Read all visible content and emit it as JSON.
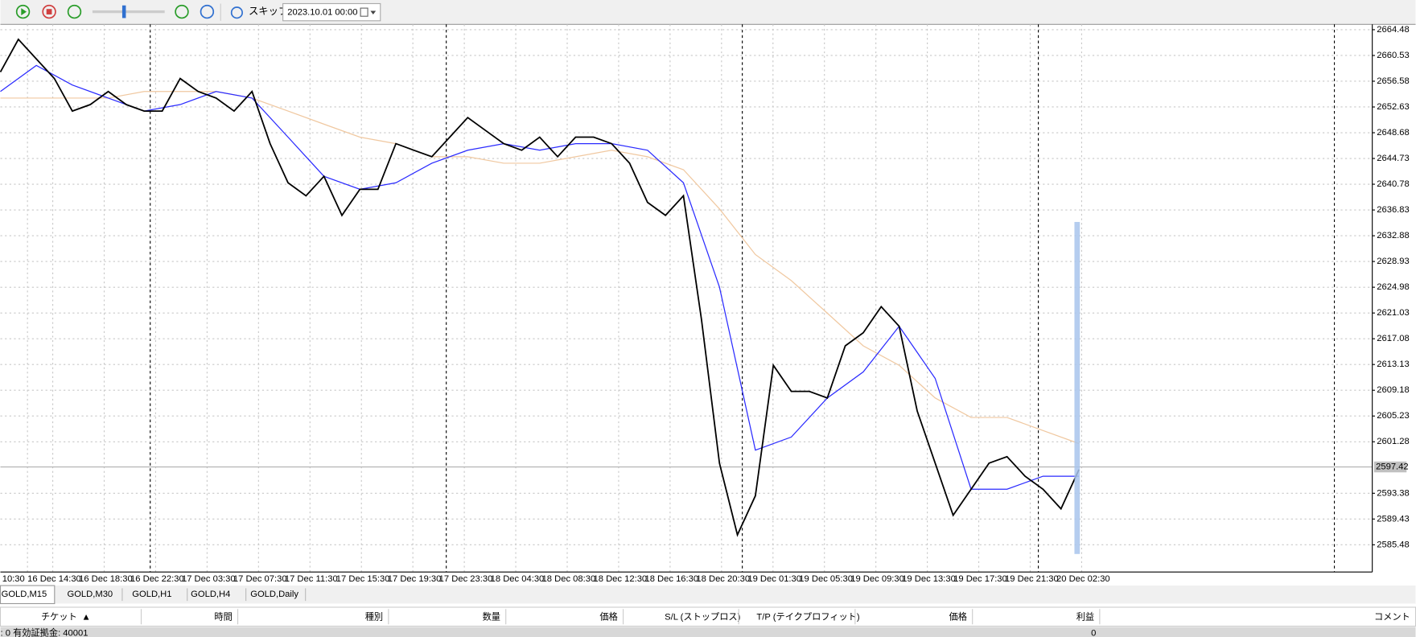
{
  "toolbar": {
    "skip_label": "スキップ",
    "date": "2023.10.01 00:00"
  },
  "chart_data": {
    "type": "line",
    "x_labels": [
      "10:30",
      "16 Dec 14:30",
      "16 Dec 18:30",
      "16 Dec 22:30",
      "17 Dec 03:30",
      "17 Dec 07:30",
      "17 Dec 11:30",
      "17 Dec 15:30",
      "17 Dec 19:30",
      "17 Dec 23:30",
      "18 Dec 04:30",
      "18 Dec 08:30",
      "18 Dec 12:30",
      "18 Dec 16:30",
      "18 Dec 20:30",
      "19 Dec 01:30",
      "19 Dec 05:30",
      "19 Dec 09:30",
      "19 Dec 13:30",
      "19 Dec 17:30",
      "19 Dec 21:30",
      "20 Dec 02:30"
    ],
    "ylim": [
      2581.3,
      2665.3
    ],
    "yticks": [
      2664.48,
      2660.53,
      2656.58,
      2652.63,
      2648.68,
      2644.73,
      2640.78,
      2636.83,
      2632.88,
      2628.93,
      2624.98,
      2621.03,
      2617.08,
      2613.13,
      2609.18,
      2605.23,
      2601.28,
      2593.38,
      2589.43,
      2585.48
    ],
    "grid": true,
    "current_price": 2597.42,
    "series": [
      {
        "color": "#000000",
        "values": [
          2658,
          2663,
          2660,
          2657,
          2652,
          2653,
          2655,
          2653,
          2652,
          2652,
          2657,
          2655,
          2654,
          2652,
          2655,
          2647,
          2641,
          2639,
          2642,
          2636,
          2640,
          2640,
          2647,
          2646,
          2645,
          2648,
          2651,
          2649,
          2647,
          2646,
          2648,
          2645,
          2648,
          2648,
          2647,
          2644,
          2638,
          2636,
          2639,
          2620,
          2598,
          2587,
          2593,
          2613,
          2609,
          2609,
          2608,
          2616,
          2618,
          2622,
          2619,
          2606,
          2598,
          2590,
          2594,
          2598,
          2599,
          2596,
          2594,
          2591,
          2597
        ]
      },
      {
        "color": "#2a2aff",
        "values": [
          2655,
          2659,
          2656,
          2654,
          2652,
          2653,
          2655,
          2654,
          2648,
          2642,
          2640,
          2641,
          2644,
          2646,
          2647,
          2646,
          2647,
          2647,
          2646,
          2641,
          2625,
          2600,
          2602,
          2608,
          2612,
          2619,
          2611,
          2594,
          2594,
          2596,
          2596
        ]
      },
      {
        "color": "#f0c8a0",
        "values": [
          2654,
          2654,
          2654,
          2654,
          2655,
          2655,
          2655,
          2654,
          2652,
          2650,
          2648,
          2647,
          2645,
          2645,
          2644,
          2644,
          2645,
          2646,
          2645,
          2643,
          2637,
          2630,
          2626,
          2621,
          2616,
          2613,
          2608,
          2605,
          2605,
          2603,
          2601
        ]
      }
    ]
  },
  "tabs": [
    "GOLD,M15",
    "GOLD,M30",
    "GOLD,H1",
    "GOLD,H4",
    "GOLD,Daily"
  ],
  "table": {
    "headers": [
      "チケット",
      "時間",
      "種別",
      "数量",
      "価格",
      "S/L (ストップロス)",
      "T/P (テイクプロフィット)",
      "価格",
      "利益",
      "コメント"
    ],
    "rows": [
      [
        ": 0  有効証拠金: 40001",
        "0"
      ]
    ]
  }
}
